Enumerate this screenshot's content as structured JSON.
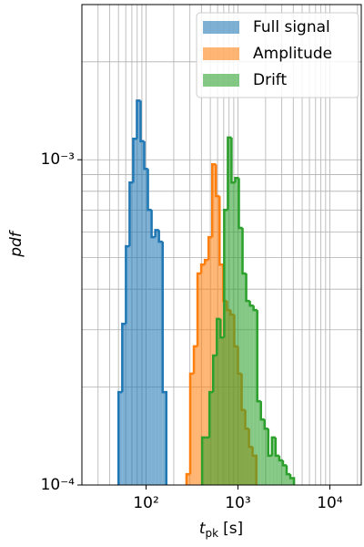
{
  "chart_data": {
    "type": "histogram",
    "xlabel": {
      "main": "t",
      "sub": "pk",
      "unit": "[s]"
    },
    "ylabel": "pdf",
    "log_x": true,
    "log_y": true,
    "grid": true,
    "legend": "upper right",
    "xlim": [
      20,
      22000
    ],
    "ylim": [
      0.0001,
      0.003
    ],
    "xticks": [
      {
        "value": 100,
        "label": "10²"
      },
      {
        "value": 1000,
        "label": "10³"
      },
      {
        "value": 10000,
        "label": "10⁴"
      }
    ],
    "xticks_minor": [
      30,
      40,
      50,
      60,
      70,
      80,
      90,
      200,
      300,
      400,
      500,
      600,
      700,
      800,
      900,
      2000,
      3000,
      4000,
      5000,
      6000,
      7000,
      8000,
      9000,
      20000
    ],
    "yticks": [
      {
        "value": 0.0001,
        "label": "10⁻⁴"
      },
      {
        "value": 0.001,
        "label": "10⁻³"
      }
    ],
    "yticks_minor": [
      0.0002,
      0.0003,
      0.0004,
      0.0005,
      0.0006,
      0.0007,
      0.0008,
      0.0009,
      0.002,
      0.003
    ],
    "series": [
      {
        "name": "Full signal",
        "color": "#1f77b4",
        "bins": [
          50.1,
          55.0,
          60.3,
          66.1,
          72.4,
          79.4,
          87.1,
          95.5,
          104.7,
          114.8,
          125.9,
          138.0,
          151.4,
          166.0
        ],
        "values": [
          0.000193,
          0.000313,
          0.000542,
          0.000851,
          0.00116,
          0.00152,
          0.00114,
          0.000937,
          0.000701,
          0.000578,
          0.000608,
          0.00056,
          0.000193
        ]
      },
      {
        "name": "Amplitude",
        "color": "#ff7f0e",
        "bins": [
          275.4,
          302.0,
          331.1,
          363.1,
          398.1,
          436.5,
          478.6,
          524.8,
          575.4,
          631.0,
          691.8,
          758.6,
          831.8,
          912.0,
          1000,
          1096,
          1202,
          1318,
          1445,
          1585
        ],
        "values": [
          0.000108,
          0.00022,
          0.000267,
          0.000447,
          0.000476,
          0.000492,
          0.000578,
          0.000968,
          0.000773,
          0.000476,
          0.000368,
          0.000345,
          0.000334,
          0.000267,
          0.00022,
          0.00017,
          0.000149,
          0.000131,
          0.000123
        ]
      },
      {
        "name": "Drift",
        "color": "#2ca02c",
        "bins": [
          407.4,
          446.7,
          489.8,
          537.0,
          588.8,
          645.7,
          707.9,
          776.2,
          851.1,
          933.3,
          1023,
          1122,
          1230,
          1349,
          1479,
          1622,
          1778,
          1950,
          2138,
          2344,
          2570,
          2818,
          3090,
          3388,
          3715,
          4074
        ],
        "values": [
          0.00014,
          0.00014,
          0.000193,
          0.00025,
          0.000324,
          0.000284,
          0.000701,
          0.00117,
          0.000851,
          0.000879,
          0.000617,
          0.000447,
          0.000368,
          0.000356,
          0.000345,
          0.000181,
          0.000159,
          0.000149,
          0.000123,
          0.00014,
          0.000123,
          0.000119,
          0.000115,
          0.000108,
          0.000105
        ]
      }
    ]
  }
}
